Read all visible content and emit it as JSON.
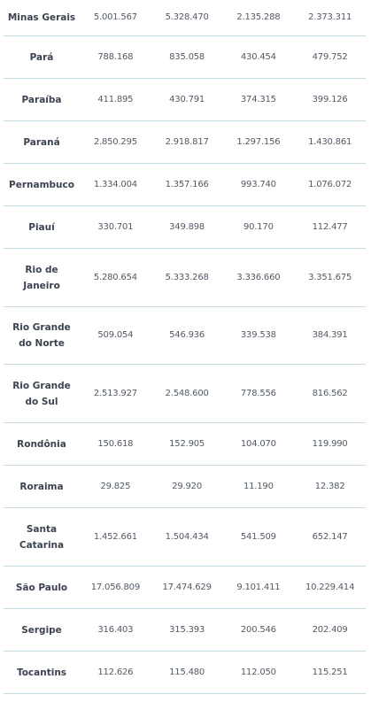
{
  "rows": [
    {
      "state": "Minas Gerais",
      "values": [
        "5.001.567",
        "5.328.470",
        "2.135.288",
        "2.373.311"
      ]
    },
    {
      "state": "Pará",
      "values": [
        "788.168",
        "835.058",
        "430.454",
        "479.752"
      ]
    },
    {
      "state": "Paraíba",
      "values": [
        "411.895",
        "430.791",
        "374.315",
        "399.126"
      ]
    },
    {
      "state": "Paraná",
      "values": [
        "2.850.295",
        "2.918.817",
        "1.297.156",
        "1.430.861"
      ]
    },
    {
      "state": "Pernambuco",
      "values": [
        "1.334.004",
        "1.357.166",
        "993.740",
        "1.076.072"
      ]
    },
    {
      "state": "Piauí",
      "values": [
        "330.701",
        "349.898",
        "90.170",
        "112.477"
      ]
    },
    {
      "state": "Rio de Janeiro",
      "values": [
        "5.280.654",
        "5.333.268",
        "3.336.660",
        "3.351.675"
      ]
    },
    {
      "state": "Rio Grande do Norte",
      "values": [
        "509.054",
        "546.936",
        "339.538",
        "384.391"
      ]
    },
    {
      "state": "Rio Grande do Sul",
      "values": [
        "2.513.927",
        "2.548.600",
        "778.556",
        "816.562"
      ]
    },
    {
      "state": "Rondônia",
      "values": [
        "150.618",
        "152.905",
        "104.070",
        "119.990"
      ]
    },
    {
      "state": "Roraima",
      "values": [
        "29.825",
        "29.920",
        "11.190",
        "12.382"
      ]
    },
    {
      "state": "Santa Catarina",
      "values": [
        "1.452.661",
        "1.504.434",
        "541.509",
        "652.147"
      ]
    },
    {
      "state": "São Paulo",
      "values": [
        "17.056.809",
        "17.474.629",
        "9.101.411",
        "10.229.414"
      ]
    },
    {
      "state": "Sergipe",
      "values": [
        "316.403",
        "315.393",
        "200.546",
        "202.409"
      ]
    },
    {
      "state": "Tocantins",
      "values": [
        "112.626",
        "115.480",
        "112.050",
        "115.251"
      ]
    }
  ]
}
